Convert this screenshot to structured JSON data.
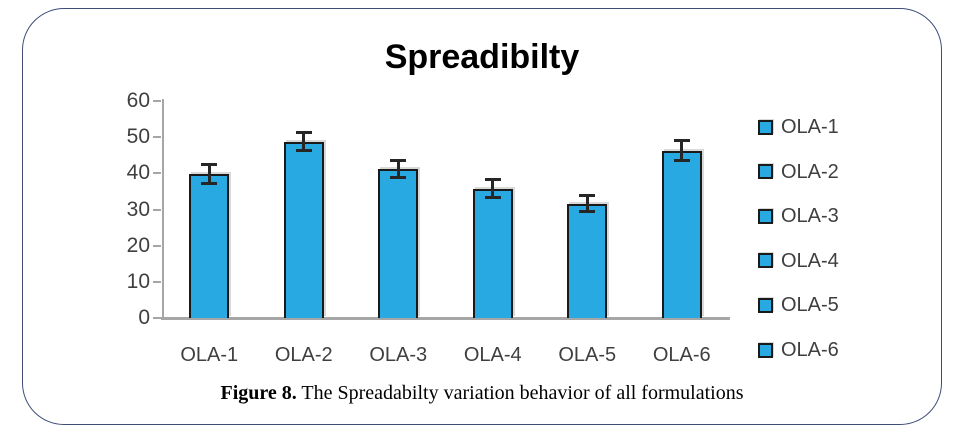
{
  "figure": {
    "caption_label": "Figure 8.",
    "caption_text": " The Spreadabilty variation behavior of all formulations"
  },
  "chart_data": {
    "type": "bar",
    "title": "Spreadibilty",
    "categories": [
      "OLA-1",
      "OLA-2",
      "OLA-3",
      "OLA-4",
      "OLA-5",
      "OLA-6"
    ],
    "values": [
      39.8,
      48.8,
      41.3,
      35.8,
      31.6,
      46.3
    ],
    "error_bars": [
      2.8,
      2.7,
      2.5,
      2.5,
      2.4,
      2.8
    ],
    "xlabel": "",
    "ylabel": "",
    "ylim": [
      0,
      60
    ],
    "yticks": [
      0,
      10,
      20,
      30,
      40,
      50,
      60
    ],
    "grid": false,
    "legend": [
      "OLA-1",
      "OLA-2",
      "OLA-3",
      "OLA-4",
      "OLA-5",
      "OLA-6"
    ],
    "legend_position": "right",
    "bar_color": "#29A9E1",
    "bar_border_color": "#1a1a1a",
    "error_bar_color": "#262626",
    "axis_color": "#A6A6A6",
    "text_color": "#3f3f3f"
  },
  "colors": {
    "frame_border": "#3F4E79",
    "background": "#ffffff"
  }
}
